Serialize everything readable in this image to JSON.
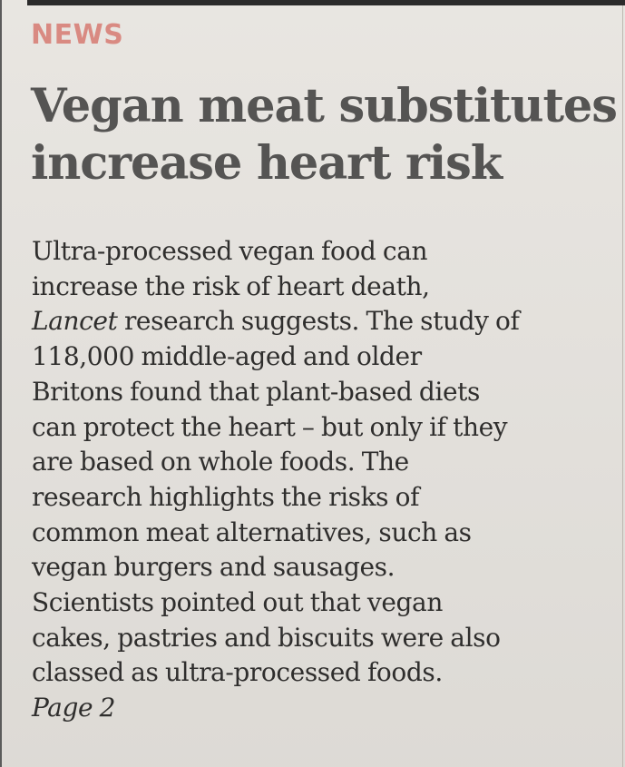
{
  "article": {
    "kicker": "NEWS",
    "headline": {
      "line1": "Vegan meat substitutes",
      "line2": "increase heart risk"
    },
    "body": {
      "line1": "Ultra-processed vegan food can",
      "line2": "increase the risk of heart death,",
      "line3_italic": "Lancet",
      "line3_rest": " research suggests. The study of",
      "line4": "118,000 middle-aged and older",
      "line5": "Britons found that plant-based diets",
      "line6": "can protect the heart – but only if they",
      "line7": "are based on whole foods. The",
      "line8": "research highlights the risks of",
      "line9": "common meat alternatives, such as",
      "line10": "vegan burgers and sausages.",
      "line11": "Scientists pointed out that vegan",
      "line12": "cakes, pastries and biscuits were also",
      "line13": "classed as ultra-processed foods.",
      "page_ref": "Page 2"
    }
  },
  "colors": {
    "kicker": "#d98a82",
    "headline": "#555453",
    "body_text": "#2f2e2d",
    "paper": "#e6e3de"
  }
}
